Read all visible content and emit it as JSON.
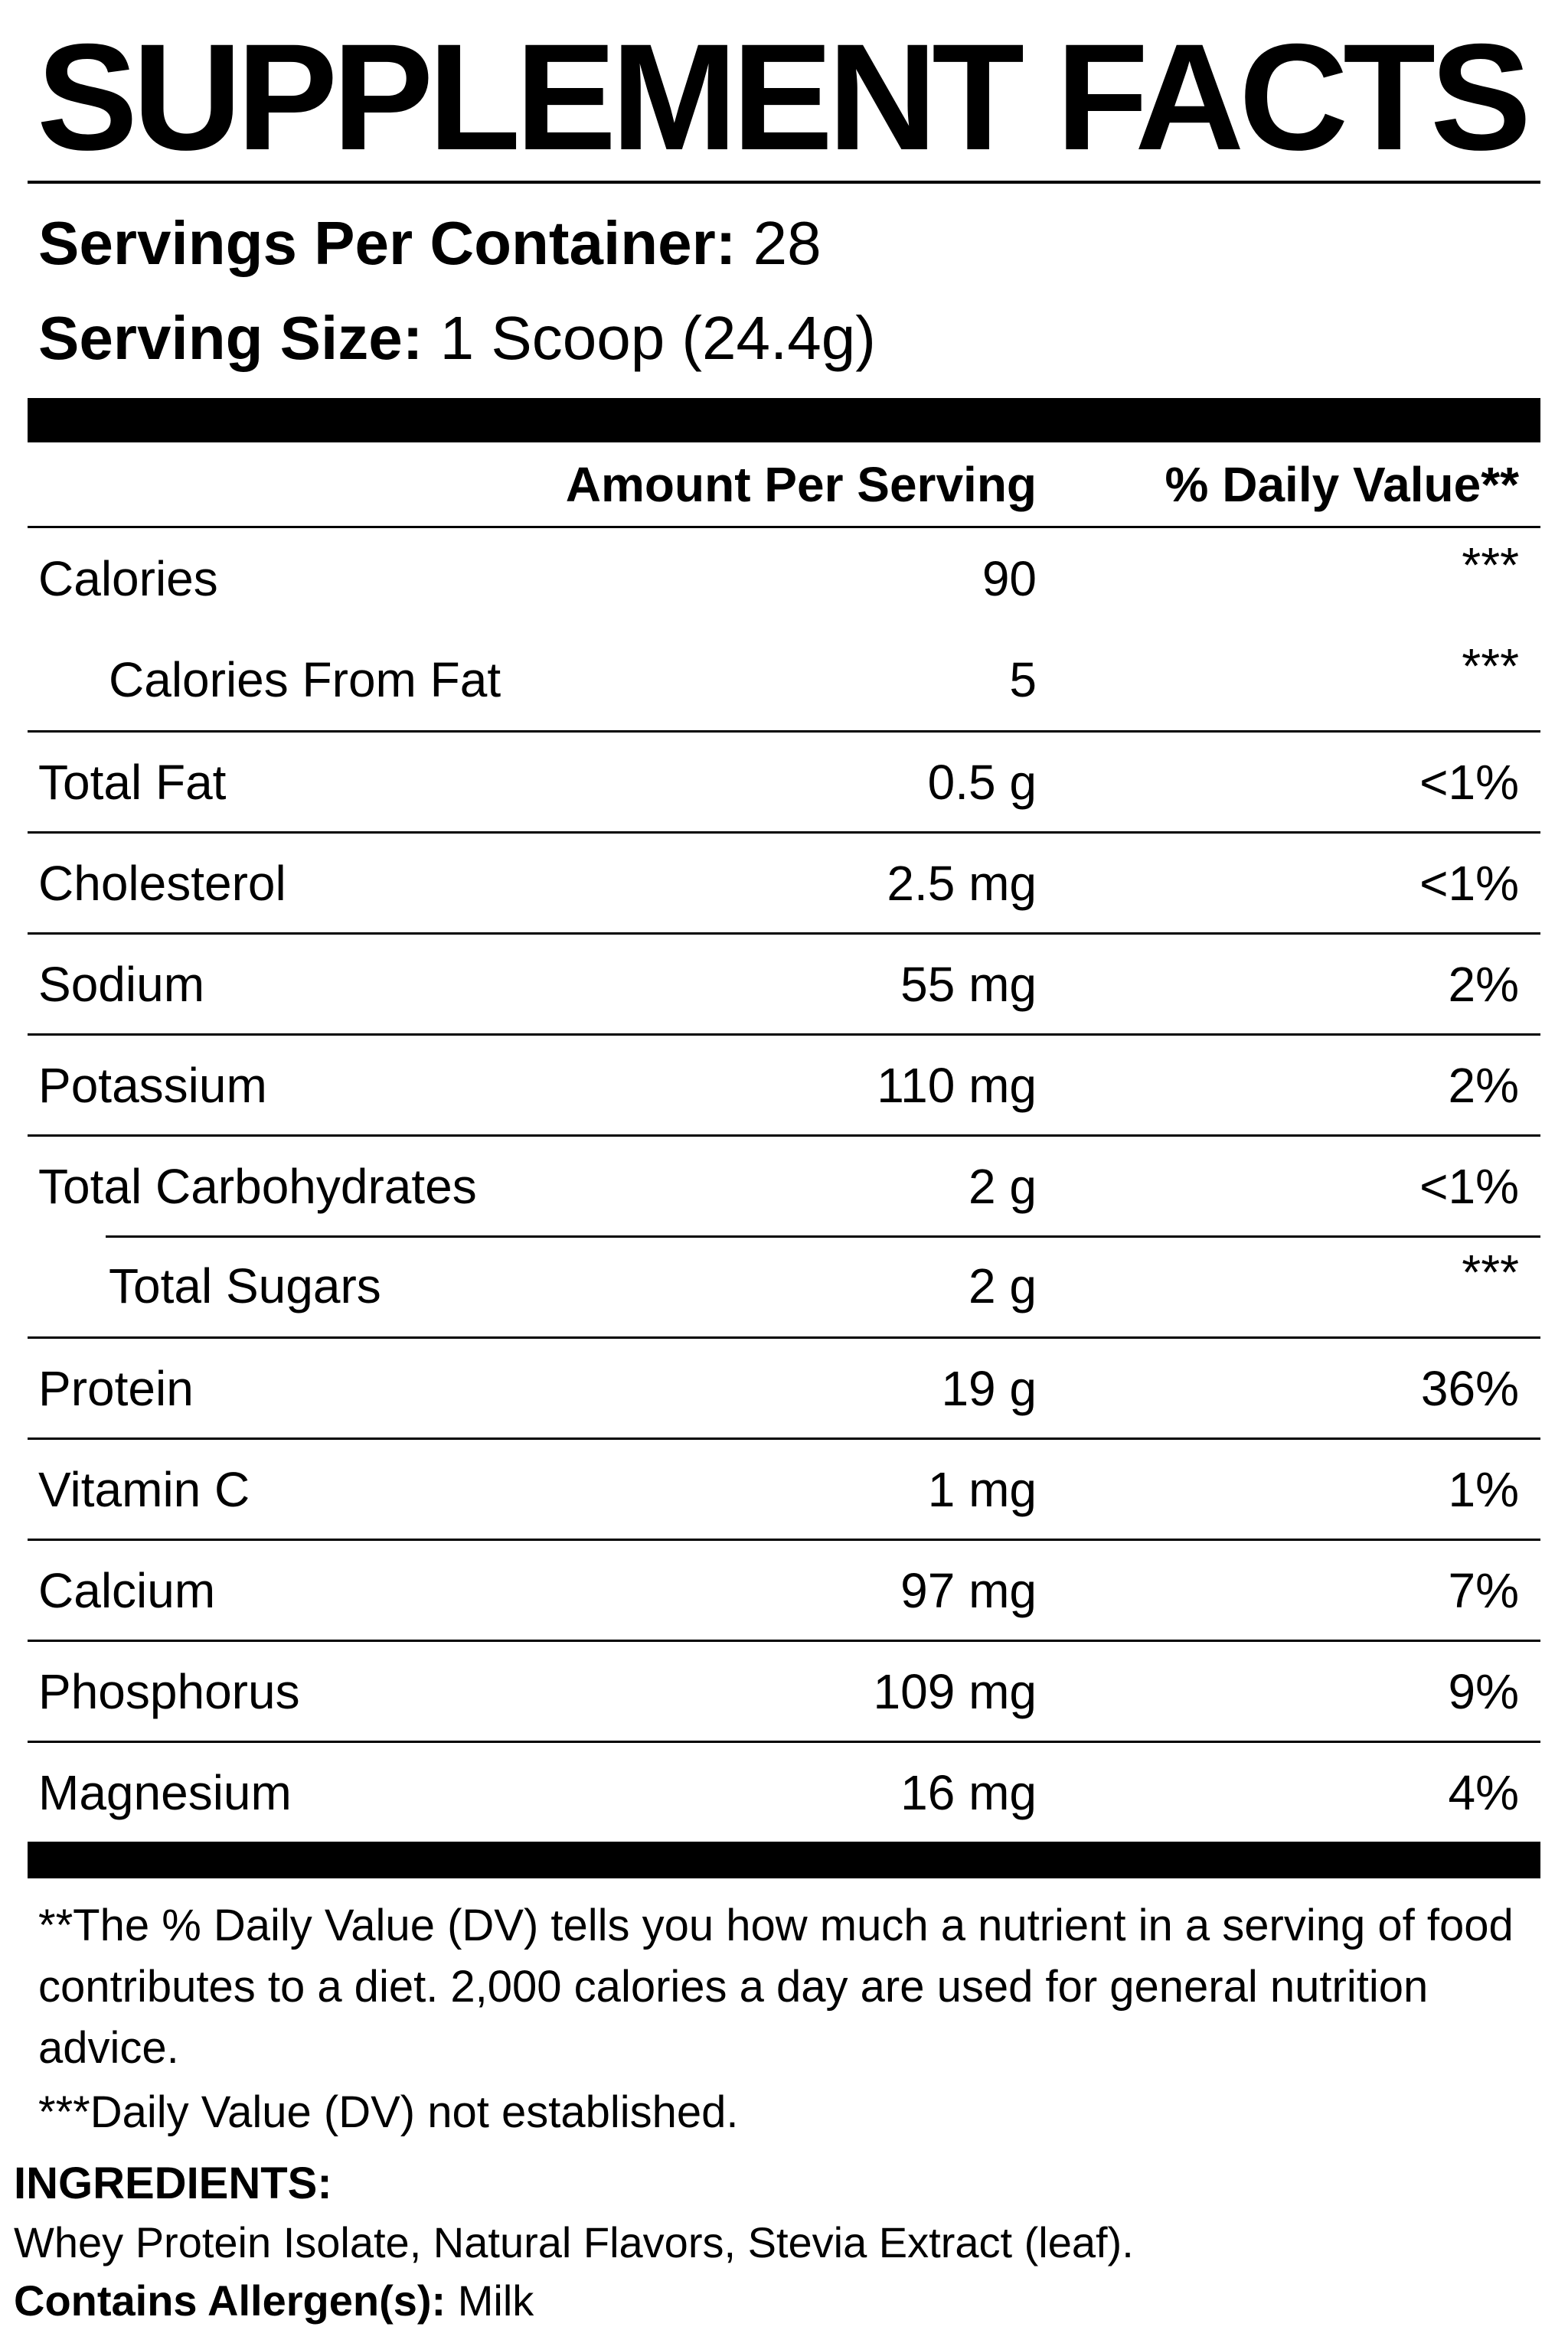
{
  "label": {
    "title": "SUPPLEMENT FACTS",
    "servings_label": "Servings Per Container:",
    "servings_value": "28",
    "serving_size_label": "Serving Size:",
    "serving_size_value": "1 Scoop (24.4g)",
    "amount_header": "Amount Per Serving",
    "dv_header": "% Daily Value**",
    "rows": [
      {
        "name": "Calories",
        "amount": "90",
        "dv": "***",
        "indent": false,
        "line": "none",
        "dv_raised": true
      },
      {
        "name": "Calories From Fat",
        "amount": "5",
        "dv": "***",
        "indent": true,
        "line": "none",
        "dv_raised": true
      },
      {
        "name": "Total Fat",
        "amount": "0.5 g",
        "dv": "<1%",
        "indent": false,
        "line": "full",
        "dv_raised": false
      },
      {
        "name": "Cholesterol",
        "amount": "2.5 mg",
        "dv": "<1%",
        "indent": false,
        "line": "full",
        "dv_raised": false
      },
      {
        "name": "Sodium",
        "amount": "55 mg",
        "dv": "2%",
        "indent": false,
        "line": "full",
        "dv_raised": false
      },
      {
        "name": "Potassium",
        "amount": "110 mg",
        "dv": "2%",
        "indent": false,
        "line": "full",
        "dv_raised": false
      },
      {
        "name": "Total Carbohydrates",
        "amount": "2 g",
        "dv": "<1%",
        "indent": false,
        "line": "full",
        "dv_raised": false
      },
      {
        "name": "Total Sugars",
        "amount": "2 g",
        "dv": "***",
        "indent": true,
        "line": "indent",
        "dv_raised": true
      },
      {
        "name": "Protein",
        "amount": "19 g",
        "dv": "36%",
        "indent": false,
        "line": "full",
        "dv_raised": false
      },
      {
        "name": "Vitamin C",
        "amount": "1 mg",
        "dv": "1%",
        "indent": false,
        "line": "full",
        "dv_raised": false
      },
      {
        "name": "Calcium",
        "amount": "97 mg",
        "dv": "7%",
        "indent": false,
        "line": "full",
        "dv_raised": false
      },
      {
        "name": "Phosphorus",
        "amount": "109 mg",
        "dv": "9%",
        "indent": false,
        "line": "full",
        "dv_raised": false
      },
      {
        "name": "Magnesium",
        "amount": "16 mg",
        "dv": "4%",
        "indent": false,
        "line": "full",
        "dv_raised": false
      }
    ],
    "footnotes": [
      "**The % Daily Value (DV) tells you how much a nutrient in a serving of food contributes to a diet. 2,000 calories a day are used for general nutrition advice.",
      "***Daily Value (DV) not established."
    ],
    "ingredients_label": "INGREDIENTS:",
    "ingredients_text": "Whey Protein Isolate, Natural Flavors, Stevia Extract (leaf).",
    "allergen_label": "Contains Allergen(s):",
    "allergen_value": "Milk"
  }
}
